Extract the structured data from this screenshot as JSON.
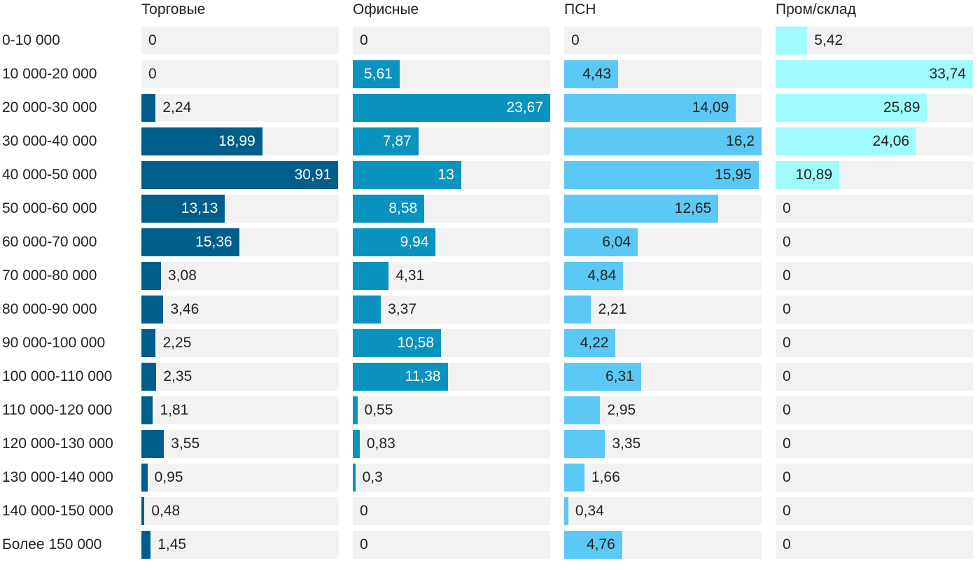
{
  "chart_data": {
    "type": "bar",
    "orientation": "horizontal",
    "layout": "small-multiples",
    "title": "",
    "xlabel": "",
    "ylabel": "",
    "categories": [
      "0-10 000",
      "10 000-20 000",
      "20 000-30 000",
      "30 000-40 000",
      "40 000-50 000",
      "50 000-60 000",
      "60 000-70 000",
      "70 000-80 000",
      "80 000-90 000",
      "90 000-100 000",
      "100 000-110 000",
      "110 000-120 000",
      "120 000-130 000",
      "130 000-140 000",
      "140 000-150 000",
      "Более 150 000"
    ],
    "series": [
      {
        "name": "Торговые",
        "color": "#005e8a",
        "xlim": [
          0,
          31
        ],
        "values": [
          0,
          0,
          2.24,
          18.99,
          30.91,
          13.13,
          15.36,
          3.08,
          3.46,
          2.25,
          2.35,
          1.81,
          3.55,
          0.95,
          0.48,
          1.45
        ],
        "labels": [
          "0",
          "0",
          "2,24",
          "18,99",
          "30,91",
          "13,13",
          "15,36",
          "3,08",
          "3,46",
          "2,25",
          "2,35",
          "1,81",
          "3,55",
          "0,95",
          "0,48",
          "1,45"
        ]
      },
      {
        "name": "Офисные",
        "color": "#0a93bf",
        "xlim": [
          0,
          23.67
        ],
        "values": [
          0,
          5.61,
          23.67,
          7.87,
          13,
          8.58,
          9.94,
          4.31,
          3.37,
          10.58,
          11.38,
          0.55,
          0.83,
          0.3,
          0,
          0
        ],
        "labels": [
          "0",
          "5,61",
          "23,67",
          "7,87",
          "13",
          "8,58",
          "9,94",
          "4,31",
          "3,37",
          "10,58",
          "11,38",
          "0,55",
          "0,83",
          "0,3",
          "0",
          "0"
        ]
      },
      {
        "name": "ПСН",
        "color": "#5bc8f5",
        "xlim": [
          0,
          16.2
        ],
        "values": [
          0,
          4.43,
          14.09,
          16.2,
          15.95,
          12.65,
          6.04,
          4.84,
          2.21,
          4.22,
          6.31,
          2.95,
          3.35,
          1.66,
          0.34,
          4.76
        ],
        "labels": [
          "0",
          "4,43",
          "14,09",
          "16,2",
          "15,95",
          "12,65",
          "6,04",
          "4,84",
          "2,21",
          "4,22",
          "6,31",
          "2,95",
          "3,35",
          "1,66",
          "0,34",
          "4,76"
        ]
      },
      {
        "name": "Пром/склад",
        "color": "#9ffbfd",
        "xlim": [
          0,
          33.74
        ],
        "values": [
          5.42,
          33.74,
          25.89,
          24.06,
          10.89,
          0,
          0,
          0,
          0,
          0,
          0,
          0,
          0,
          0,
          0,
          0
        ],
        "labels": [
          "5,42",
          "33,74",
          "25,89",
          "24,06",
          "10,89",
          "0",
          "0",
          "0",
          "0",
          "0",
          "0",
          "0",
          "0",
          "0",
          "0",
          "0"
        ]
      }
    ],
    "track_color": "#f2f2f2",
    "grid": false,
    "legend": "none"
  }
}
